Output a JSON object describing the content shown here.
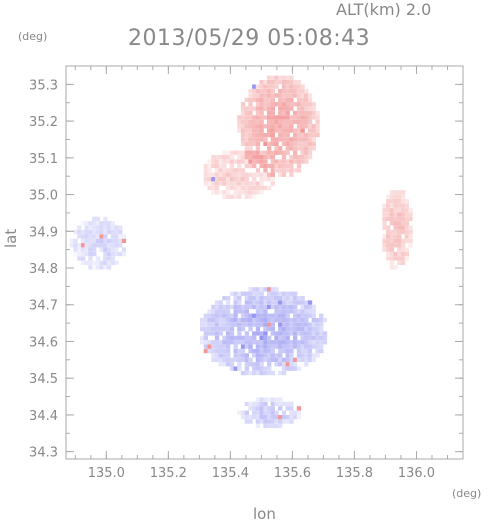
{
  "header": {
    "altitude_label": "ALT(km) 2.0",
    "timestamp": "2013/05/29 05:08:43",
    "unit_top": "(deg)",
    "unit_right": "(deg)"
  },
  "axes": {
    "x_label": "lon",
    "y_label": "lat"
  },
  "chart_data": {
    "type": "heatmap",
    "xlabel": "lon",
    "ylabel": "lat",
    "xlim": [
      134.87,
      136.15
    ],
    "ylim": [
      34.28,
      35.35
    ],
    "x_ticks": [
      "135.0",
      "135.2",
      "135.4",
      "135.6",
      "135.8",
      "136.0"
    ],
    "y_ticks": [
      "34.3",
      "34.4",
      "34.5",
      "34.6",
      "34.7",
      "34.8",
      "34.9",
      "35.0",
      "35.1",
      "35.2",
      "35.3"
    ],
    "colors": {
      "positive": "#f08a8a",
      "negative": "#8a8af0",
      "frame": "#aaaaaa"
    },
    "regions": [
      {
        "sign": "positive",
        "center": [
          135.55,
          35.18
        ],
        "radius": [
          0.13,
          0.14
        ],
        "strength": 0.7
      },
      {
        "sign": "positive",
        "center": [
          135.42,
          35.05
        ],
        "radius": [
          0.12,
          0.07
        ],
        "strength": 0.4
      },
      {
        "sign": "positive",
        "center": [
          135.93,
          34.9
        ],
        "radius": [
          0.05,
          0.11
        ],
        "strength": 0.5
      },
      {
        "sign": "negative",
        "center": [
          134.97,
          34.86
        ],
        "radius": [
          0.09,
          0.07
        ],
        "strength": 0.35
      },
      {
        "sign": "negative",
        "center": [
          135.5,
          34.62
        ],
        "radius": [
          0.21,
          0.12
        ],
        "strength": 0.6
      },
      {
        "sign": "negative",
        "center": [
          135.52,
          34.4
        ],
        "radius": [
          0.1,
          0.04
        ],
        "strength": 0.45
      }
    ]
  }
}
